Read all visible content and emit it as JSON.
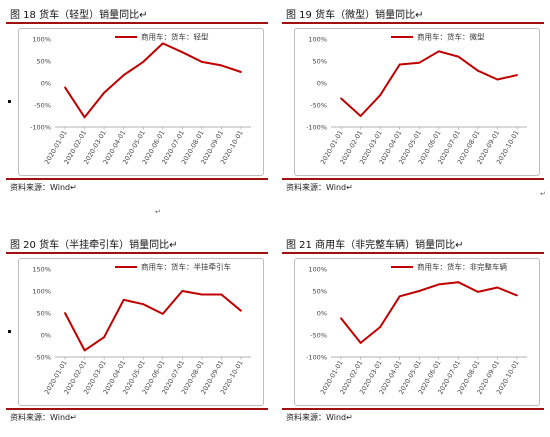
{
  "panels": [
    {
      "title": "图 18 货车（轻型）销量同比↵",
      "source": "资料来源：Wind↵",
      "chart_data": {
        "type": "line",
        "legend": "商用车：货车：轻型",
        "legend_position": "top-center",
        "x": [
          "2020-01-01",
          "2020-02-01",
          "2020-03-01",
          "2020-04-01",
          "2020-05-01",
          "2020-06-01",
          "2020-07-01",
          "2020-08-01",
          "2020-09-01",
          "2020-10-01"
        ],
        "values": [
          -10,
          -78,
          -22,
          18,
          48,
          90,
          70,
          48,
          40,
          25
        ],
        "yticks": [
          "100%",
          "50%",
          "0%",
          "-50%",
          "-100%"
        ],
        "ylim": [
          -100,
          100
        ],
        "color": "#c00000"
      }
    },
    {
      "title": "图 19 货车（微型）销量同比↵",
      "source": "资料来源：Wind↵",
      "chart_data": {
        "type": "line",
        "legend": "商用车：货车：微型",
        "legend_position": "top-center",
        "x": [
          "2020-01-01",
          "2020-02-01",
          "2020-03-01",
          "2020-04-01",
          "2020-05-01",
          "2020-06-01",
          "2020-07-01",
          "2020-08-01",
          "2020-09-01",
          "2020-10-01"
        ],
        "values": [
          -35,
          -75,
          -28,
          42,
          46,
          72,
          60,
          28,
          8,
          18
        ],
        "yticks": [
          "100%",
          "50%",
          "0%",
          "-50%",
          "-100%"
        ],
        "ylim": [
          -100,
          100
        ],
        "color": "#c00000"
      }
    },
    {
      "title": "图 20 货车（半挂牵引车）销量同比↵",
      "source": "资料来源：Wind↵",
      "chart_data": {
        "type": "line",
        "legend": "商用车：货车：半挂牵引车",
        "legend_position": "top-center",
        "x": [
          "2020-01-01",
          "2020-02-01",
          "2020-03-01",
          "2020-04-01",
          "2020-05-01",
          "2020-06-01",
          "2020-07-01",
          "2020-08-01",
          "2020-09-01",
          "2020-10-01"
        ],
        "values": [
          50,
          -35,
          -5,
          80,
          70,
          48,
          100,
          92,
          92,
          55
        ],
        "yticks": [
          "150%",
          "100%",
          "50%",
          "0%",
          "-50%"
        ],
        "ylim": [
          -50,
          150
        ],
        "color": "#c00000"
      }
    },
    {
      "title": "图 21 商用车（非完整车辆）销量同比↵",
      "source": "资料来源：Wind↵",
      "chart_data": {
        "type": "line",
        "legend": "商用车：货车：非完整车辆",
        "legend_position": "top-center",
        "x": [
          "2020-01-01",
          "2020-02-01",
          "2020-03-01",
          "2020-04-01",
          "2020-05-01",
          "2020-06-01",
          "2020-07-01",
          "2020-08-01",
          "2020-09-01",
          "2020-10-01"
        ],
        "values": [
          -12,
          -68,
          -32,
          38,
          50,
          65,
          70,
          48,
          58,
          40
        ],
        "yticks": [
          "100%",
          "50%",
          "0%",
          "-50%",
          "-100%"
        ],
        "ylim": [
          -100,
          100
        ],
        "color": "#c00000"
      }
    }
  ],
  "stray_marks": [
    "↵",
    "↵"
  ]
}
